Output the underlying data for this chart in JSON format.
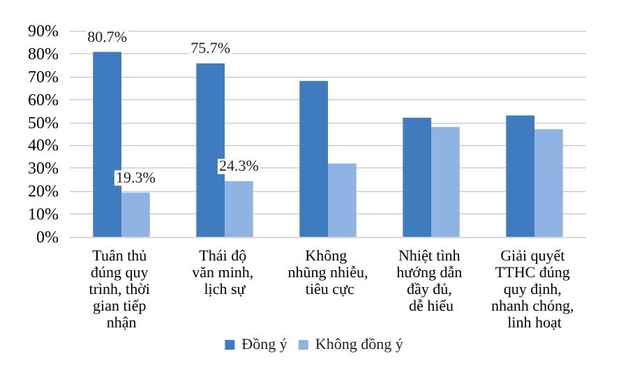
{
  "chart_data": {
    "type": "bar",
    "categories": [
      "Tuân thủ đúng quy trình, thời gian tiếp nhận",
      "Thái độ văn minh, lịch sự",
      "Không nhũng nhiễu, tiêu cực",
      "Nhiệt tình hướng dẫn đầy đủ, dễ hiểu",
      "Giải quyết TTHC đúng quy định, nhanh chóng, linh hoạt"
    ],
    "series": [
      {
        "name": "Đồng ý",
        "color": "#3f7cbf",
        "values": [
          80.7,
          75.7,
          68,
          52,
          53
        ],
        "value_labels": [
          "80.7%",
          "75.7%",
          null,
          null,
          null
        ]
      },
      {
        "name": "Không đồng ý",
        "color": "#8fb4e3",
        "values": [
          19.3,
          24.3,
          32,
          48,
          47
        ],
        "value_labels": [
          "19.3%",
          "24.3%",
          null,
          null,
          null
        ]
      }
    ],
    "ylim": [
      0,
      90
    ],
    "yticks": [
      {
        "value": 0,
        "label": "0%"
      },
      {
        "value": 10,
        "label": "10%"
      },
      {
        "value": 20,
        "label": "20%"
      },
      {
        "value": 30,
        "label": "30%"
      },
      {
        "value": 40,
        "label": "40%"
      },
      {
        "value": 50,
        "label": "50%"
      },
      {
        "value": 60,
        "label": "60%"
      },
      {
        "value": 70,
        "label": "70%"
      },
      {
        "value": 80,
        "label": "80%"
      },
      {
        "value": 90,
        "label": "90%"
      }
    ],
    "grid": true,
    "legend": "bottom"
  }
}
